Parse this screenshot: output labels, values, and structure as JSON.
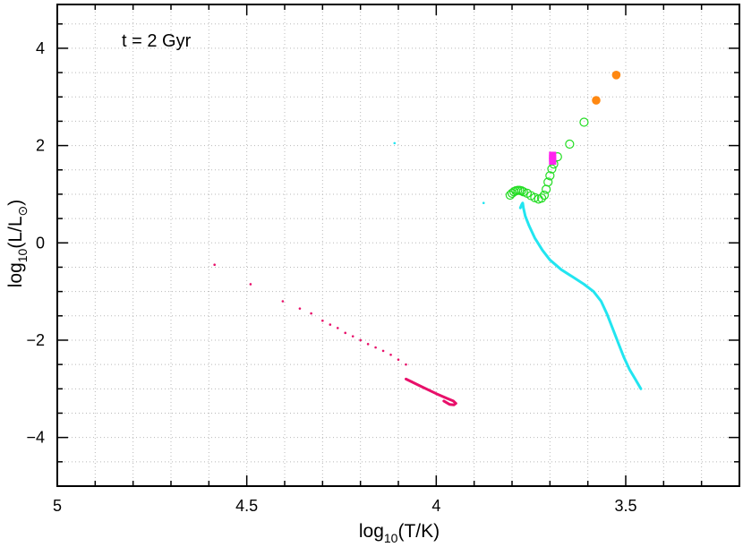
{
  "chart_data": {
    "type": "scatter",
    "title": "",
    "annotation": "t = 2 Gyr",
    "xlabel": {
      "base": "log",
      "sub": "10",
      "rest": "(T/K)"
    },
    "ylabel": {
      "base": "log",
      "sub": "10",
      "rest": "(L/L",
      "sun": "⊙",
      "close": ")"
    },
    "xlim": [
      5,
      3.2
    ],
    "ylim": [
      -5,
      4.9
    ],
    "x_ticks": [
      5,
      4.5,
      4,
      3.5
    ],
    "x_tick_labels": [
      "5",
      "4.5",
      "4",
      "3.5"
    ],
    "y_ticks": [
      -4,
      -2,
      0,
      2,
      4
    ],
    "y_tick_labels": [
      "−4",
      "−2",
      "0",
      "2",
      "4"
    ],
    "grid": true,
    "series": [
      {
        "style": "line",
        "color": "#22e5f0",
        "points": [
          [
            3.46,
            -3.0
          ],
          [
            3.475,
            -2.8
          ],
          [
            3.49,
            -2.6
          ],
          [
            3.505,
            -2.35
          ],
          [
            3.52,
            -2.05
          ],
          [
            3.535,
            -1.75
          ],
          [
            3.55,
            -1.45
          ],
          [
            3.565,
            -1.2
          ],
          [
            3.585,
            -1.0
          ],
          [
            3.61,
            -0.85
          ],
          [
            3.64,
            -0.7
          ],
          [
            3.67,
            -0.55
          ],
          [
            3.7,
            -0.35
          ],
          [
            3.72,
            -0.15
          ],
          [
            3.74,
            0.1
          ],
          [
            3.755,
            0.35
          ],
          [
            3.765,
            0.55
          ],
          [
            3.77,
            0.72
          ],
          [
            3.772,
            0.82
          ],
          [
            3.775,
            0.78
          ],
          [
            3.778,
            0.72
          ]
        ]
      },
      {
        "style": "dots",
        "color": "#22e5f0",
        "points": [
          [
            4.11,
            2.05
          ],
          [
            3.875,
            0.82
          ]
        ]
      },
      {
        "style": "line",
        "color": "#e8106a",
        "points": [
          [
            4.08,
            -2.8
          ],
          [
            4.04,
            -2.95
          ],
          [
            4.0,
            -3.1
          ],
          [
            3.97,
            -3.2
          ],
          [
            3.955,
            -3.25
          ],
          [
            3.948,
            -3.3
          ],
          [
            3.953,
            -3.33
          ],
          [
            3.965,
            -3.32
          ],
          [
            3.98,
            -3.25
          ]
        ]
      },
      {
        "style": "dots",
        "color": "#e8106a",
        "points": [
          [
            4.585,
            -0.45
          ],
          [
            4.49,
            -0.85
          ],
          [
            4.405,
            -1.2
          ],
          [
            4.36,
            -1.35
          ],
          [
            4.33,
            -1.45
          ],
          [
            4.3,
            -1.6
          ],
          [
            4.28,
            -1.68
          ],
          [
            4.26,
            -1.75
          ],
          [
            4.24,
            -1.85
          ],
          [
            4.22,
            -1.92
          ],
          [
            4.2,
            -2.0
          ],
          [
            4.18,
            -2.08
          ],
          [
            4.16,
            -2.15
          ],
          [
            4.14,
            -2.22
          ],
          [
            4.12,
            -2.3
          ],
          [
            4.1,
            -2.4
          ],
          [
            4.08,
            -2.5
          ],
          [
            4.065,
            -2.85
          ]
        ]
      },
      {
        "style": "open-circles",
        "color": "#22dd22",
        "points": [
          [
            3.805,
            0.98
          ],
          [
            3.8,
            1.02
          ],
          [
            3.795,
            1.05
          ],
          [
            3.79,
            1.07
          ],
          [
            3.785,
            1.08
          ],
          [
            3.78,
            1.08
          ],
          [
            3.775,
            1.07
          ],
          [
            3.77,
            1.05
          ],
          [
            3.76,
            1.02
          ],
          [
            3.75,
            0.97
          ],
          [
            3.74,
            0.93
          ],
          [
            3.73,
            0.9
          ],
          [
            3.722,
            0.92
          ],
          [
            3.715,
            0.98
          ],
          [
            3.71,
            1.1
          ],
          [
            3.705,
            1.25
          ],
          [
            3.7,
            1.38
          ],
          [
            3.695,
            1.52
          ],
          [
            3.69,
            1.62
          ],
          [
            3.68,
            1.77
          ],
          [
            3.648,
            2.03
          ],
          [
            3.61,
            2.48
          ]
        ]
      },
      {
        "style": "filled-squares",
        "color": "#ff22ee",
        "points": [
          [
            3.693,
            1.8
          ],
          [
            3.693,
            1.74
          ],
          [
            3.693,
            1.68
          ]
        ]
      },
      {
        "style": "filled-circles",
        "color": "#ff8811",
        "points": [
          [
            3.578,
            2.93
          ],
          [
            3.525,
            3.45
          ]
        ]
      }
    ]
  }
}
